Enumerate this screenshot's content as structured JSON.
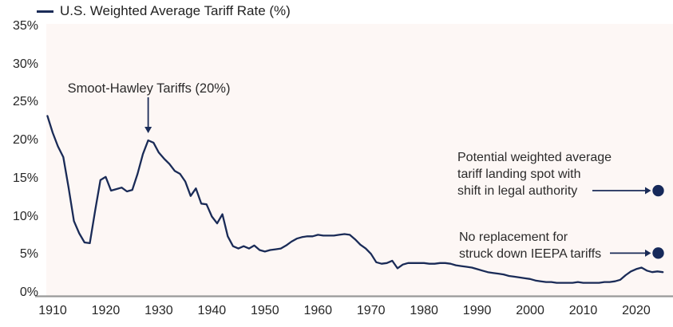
{
  "legend": {
    "label": "U.S. Weighted Average Tariff Rate (%)"
  },
  "colors": {
    "line": "#1a2b57",
    "dot": "#16295a",
    "annotation_text": "#2b2a2a",
    "plot_background": "#fdf7f5",
    "axis_line": "#999999",
    "tick_text": "#262626"
  },
  "chart_data": {
    "type": "line",
    "title": "",
    "xlabel": "",
    "ylabel": "",
    "grid": false,
    "legend_position": "top-left",
    "xlim": [
      1908,
      2027
    ],
    "ylim": [
      0,
      35
    ],
    "x_ticks": [
      1910,
      1920,
      1930,
      1940,
      1950,
      1960,
      1970,
      1980,
      1990,
      2000,
      2010,
      2020
    ],
    "y_ticks": [
      {
        "label": "35%",
        "value": 35
      },
      {
        "label": "30%",
        "value": 30
      },
      {
        "label": "25%",
        "value": 25
      },
      {
        "label": "20%",
        "value": 20
      },
      {
        "label": "15%",
        "value": 15
      },
      {
        "label": "10%",
        "value": 10
      },
      {
        "label": "5%",
        "value": 5
      },
      {
        "label": "0%",
        "value": 0
      }
    ],
    "series": [
      {
        "name": "U.S. Weighted Average Tariff Rate (%)",
        "color": "#1a2b57",
        "points": [
          [
            1909,
            23.2
          ],
          [
            1910,
            21.0
          ],
          [
            1911,
            19.2
          ],
          [
            1912,
            17.8
          ],
          [
            1913,
            13.8
          ],
          [
            1914,
            9.4
          ],
          [
            1915,
            7.8
          ],
          [
            1916,
            6.6
          ],
          [
            1917,
            6.5
          ],
          [
            1918,
            10.8
          ],
          [
            1919,
            14.8
          ],
          [
            1920,
            15.2
          ],
          [
            1921,
            13.4
          ],
          [
            1922,
            13.6
          ],
          [
            1923,
            13.8
          ],
          [
            1924,
            13.3
          ],
          [
            1925,
            13.5
          ],
          [
            1926,
            15.6
          ],
          [
            1927,
            18.2
          ],
          [
            1928,
            20.0
          ],
          [
            1929,
            19.7
          ],
          [
            1930,
            18.4
          ],
          [
            1931,
            17.6
          ],
          [
            1932,
            16.9
          ],
          [
            1933,
            16.0
          ],
          [
            1934,
            15.6
          ],
          [
            1935,
            14.6
          ],
          [
            1936,
            12.7
          ],
          [
            1937,
            13.7
          ],
          [
            1938,
            11.7
          ],
          [
            1939,
            11.6
          ],
          [
            1940,
            10.0
          ],
          [
            1941,
            9.1
          ],
          [
            1942,
            10.3
          ],
          [
            1943,
            7.4
          ],
          [
            1944,
            6.1
          ],
          [
            1945,
            5.8
          ],
          [
            1946,
            6.1
          ],
          [
            1947,
            5.8
          ],
          [
            1948,
            6.2
          ],
          [
            1949,
            5.6
          ],
          [
            1950,
            5.4
          ],
          [
            1951,
            5.6
          ],
          [
            1952,
            5.7
          ],
          [
            1953,
            5.8
          ],
          [
            1954,
            6.2
          ],
          [
            1955,
            6.7
          ],
          [
            1956,
            7.1
          ],
          [
            1957,
            7.3
          ],
          [
            1958,
            7.4
          ],
          [
            1959,
            7.4
          ],
          [
            1960,
            7.6
          ],
          [
            1961,
            7.5
          ],
          [
            1962,
            7.5
          ],
          [
            1963,
            7.5
          ],
          [
            1964,
            7.6
          ],
          [
            1965,
            7.7
          ],
          [
            1966,
            7.6
          ],
          [
            1967,
            7.0
          ],
          [
            1968,
            6.3
          ],
          [
            1969,
            5.8
          ],
          [
            1970,
            5.1
          ],
          [
            1971,
            4.0
          ],
          [
            1972,
            3.8
          ],
          [
            1973,
            3.9
          ],
          [
            1974,
            4.2
          ],
          [
            1975,
            3.2
          ],
          [
            1976,
            3.7
          ],
          [
            1977,
            3.9
          ],
          [
            1978,
            3.9
          ],
          [
            1979,
            3.9
          ],
          [
            1980,
            3.9
          ],
          [
            1981,
            3.8
          ],
          [
            1982,
            3.8
          ],
          [
            1983,
            3.9
          ],
          [
            1984,
            3.9
          ],
          [
            1985,
            3.8
          ],
          [
            1986,
            3.6
          ],
          [
            1987,
            3.5
          ],
          [
            1988,
            3.4
          ],
          [
            1989,
            3.3
          ],
          [
            1990,
            3.1
          ],
          [
            1991,
            2.9
          ],
          [
            1992,
            2.7
          ],
          [
            1993,
            2.6
          ],
          [
            1994,
            2.5
          ],
          [
            1995,
            2.4
          ],
          [
            1996,
            2.2
          ],
          [
            1997,
            2.1
          ],
          [
            1998,
            2.0
          ],
          [
            1999,
            1.9
          ],
          [
            2000,
            1.8
          ],
          [
            2001,
            1.6
          ],
          [
            2002,
            1.5
          ],
          [
            2003,
            1.4
          ],
          [
            2004,
            1.4
          ],
          [
            2005,
            1.3
          ],
          [
            2006,
            1.3
          ],
          [
            2007,
            1.3
          ],
          [
            2008,
            1.3
          ],
          [
            2009,
            1.4
          ],
          [
            2010,
            1.3
          ],
          [
            2011,
            1.3
          ],
          [
            2012,
            1.3
          ],
          [
            2013,
            1.3
          ],
          [
            2014,
            1.4
          ],
          [
            2015,
            1.4
          ],
          [
            2016,
            1.5
          ],
          [
            2017,
            1.7
          ],
          [
            2018,
            2.3
          ],
          [
            2019,
            2.8
          ],
          [
            2020,
            3.1
          ],
          [
            2021,
            3.3
          ],
          [
            2022,
            2.9
          ],
          [
            2023,
            2.7
          ],
          [
            2024,
            2.8
          ],
          [
            2025,
            2.7
          ]
        ]
      }
    ],
    "annotations": [
      {
        "id": "smoot-hawley",
        "text": "Smoot-Hawley Tariffs (20%)",
        "arrow": "down",
        "target_year": 1928,
        "target_value": 20
      },
      {
        "id": "landing-spot",
        "lines": [
          "Potential weighted average",
          "tariff landing spot with",
          "shift in legal authority"
        ],
        "arrow": "right",
        "dot_value": 13.4
      },
      {
        "id": "ieepa",
        "lines": [
          "No replacement for",
          "struck down IEEPA tariffs"
        ],
        "arrow": "right",
        "dot_value": 5.2
      }
    ]
  }
}
